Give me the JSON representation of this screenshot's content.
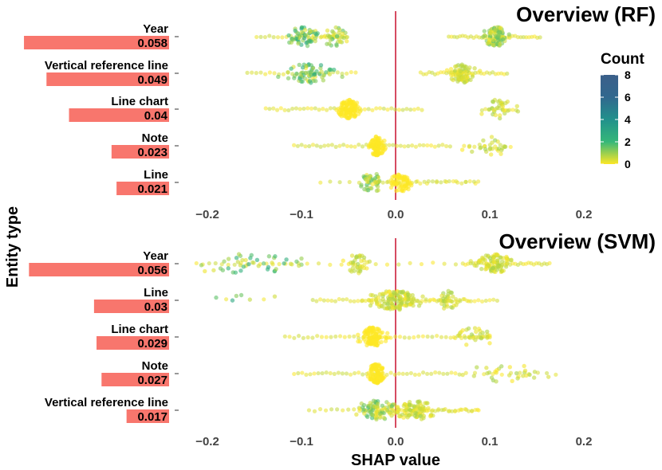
{
  "chart_data": {
    "type": "scatter",
    "subtype": "shap-beeswarm-with-importance-bars",
    "ylabel": "Entity type",
    "xlabel": "SHAP value",
    "xlim": [
      -0.22,
      0.22
    ],
    "xticks": [
      -0.2,
      -0.1,
      0.0,
      0.1,
      0.2
    ],
    "xtick_labels": [
      "−0.2",
      "−0.1",
      "0.0",
      "0.1",
      "0.2"
    ],
    "reference_line_x": 0.0,
    "reference_line_color": "#c8102e",
    "bar_color": "#f8766d",
    "legend": {
      "title": "Count",
      "min": 0,
      "max": 8,
      "ticks": [
        0,
        2,
        4,
        6,
        8
      ],
      "colors": [
        "#fde725",
        "#35b779",
        "#21918c",
        "#31688e",
        "#3b5f8a"
      ]
    },
    "panels": [
      {
        "title": "Overview (RF)",
        "features": [
          {
            "label": "Year",
            "importance": 0.058,
            "importance_label": "0.058",
            "clusters": [
              {
                "range": [
                  -0.15,
                  -0.05
                ],
                "mean": -0.097,
                "sd": 0.008,
                "n": 80,
                "max_count": 3
              },
              {
                "range": [
                  -0.08,
                  -0.05
                ],
                "mean": -0.065,
                "sd": 0.006,
                "n": 40,
                "max_count": 2
              },
              {
                "range": [
                  0.055,
                  0.155
                ],
                "mean": 0.107,
                "sd": 0.006,
                "n": 120,
                "max_count": 2
              }
            ]
          },
          {
            "label": "Vertical reference line",
            "importance": 0.049,
            "importance_label": "0.049",
            "clusters": [
              {
                "range": [
                  -0.16,
                  -0.04
                ],
                "mean": -0.09,
                "sd": 0.012,
                "n": 90,
                "max_count": 3
              },
              {
                "range": [
                  0.025,
                  0.12
                ],
                "mean": 0.07,
                "sd": 0.006,
                "n": 110,
                "max_count": 1
              }
            ]
          },
          {
            "label": "Line chart",
            "importance": 0.04,
            "importance_label": "0.04",
            "clusters": [
              {
                "range": [
                  -0.14,
                  0.03
                ],
                "mean": -0.05,
                "sd": 0.005,
                "n": 150,
                "max_count": 0
              },
              {
                "range": [
                  0.09,
                  0.13
                ],
                "mean": 0.11,
                "sd": 0.008,
                "n": 40,
                "max_count": 1
              }
            ]
          },
          {
            "label": "Note",
            "importance": 0.023,
            "importance_label": "0.023",
            "clusters": [
              {
                "range": [
                  -0.11,
                  0.06
                ],
                "mean": -0.02,
                "sd": 0.004,
                "n": 150,
                "max_count": 0
              },
              {
                "range": [
                  0.07,
                  0.125
                ],
                "mean": 0.1,
                "sd": 0.01,
                "n": 35,
                "max_count": 1
              }
            ]
          },
          {
            "label": "Line",
            "importance": 0.021,
            "importance_label": "0.021",
            "clusters": [
              {
                "range": [
                  -0.085,
                  0.09
                ],
                "mean": -0.025,
                "sd": 0.006,
                "n": 60,
                "max_count": 2
              },
              {
                "range": [
                  -0.02,
                  0.09
                ],
                "mean": 0.005,
                "sd": 0.005,
                "n": 90,
                "max_count": 0
              }
            ]
          }
        ]
      },
      {
        "title": "Overview (SVM)",
        "features": [
          {
            "label": "Year",
            "importance": 0.056,
            "importance_label": "0.056",
            "clusters": [
              {
                "range": [
                  -0.215,
                  -0.1
                ],
                "mean": -0.16,
                "sd": 0.03,
                "n": 60,
                "max_count": 3
              },
              {
                "range": [
                  -0.1,
                  0.07
                ],
                "mean": -0.04,
                "sd": 0.006,
                "n": 50,
                "max_count": 1
              },
              {
                "range": [
                  0.07,
                  0.165
                ],
                "mean": 0.105,
                "sd": 0.008,
                "n": 120,
                "max_count": 1
              }
            ]
          },
          {
            "label": "Line",
            "importance": 0.03,
            "importance_label": "0.03",
            "clusters": [
              {
                "range": [
                  -0.2,
                  -0.12
                ],
                "mean": -0.16,
                "sd": 0.02,
                "n": 8,
                "max_count": 3
              },
              {
                "range": [
                  -0.09,
                  0.11
                ],
                "mean": 0.0,
                "sd": 0.012,
                "n": 180,
                "max_count": 1
              },
              {
                "range": [
                  0.03,
                  0.08
                ],
                "mean": 0.055,
                "sd": 0.004,
                "n": 40,
                "max_count": 1
              }
            ]
          },
          {
            "label": "Line chart",
            "importance": 0.029,
            "importance_label": "0.029",
            "clusters": [
              {
                "range": [
                  -0.12,
                  0.1
                ],
                "mean": -0.025,
                "sd": 0.006,
                "n": 160,
                "max_count": 0
              },
              {
                "range": [
                  0.06,
                  0.1
                ],
                "mean": 0.085,
                "sd": 0.008,
                "n": 35,
                "max_count": 1
              }
            ]
          },
          {
            "label": "Note",
            "importance": 0.027,
            "importance_label": "0.027",
            "clusters": [
              {
                "range": [
                  -0.11,
                  0.07
                ],
                "mean": -0.02,
                "sd": 0.004,
                "n": 150,
                "max_count": 0
              },
              {
                "range": [
                  0.07,
                  0.175
                ],
                "mean": 0.11,
                "sd": 0.02,
                "n": 40,
                "max_count": 1
              }
            ]
          },
          {
            "label": "Vertical reference line",
            "importance": 0.017,
            "importance_label": "0.017",
            "clusters": [
              {
                "range": [
                  -0.095,
                  0.09
                ],
                "mean": -0.02,
                "sd": 0.01,
                "n": 110,
                "max_count": 2
              },
              {
                "range": [
                  -0.02,
                  0.09
                ],
                "mean": 0.02,
                "sd": 0.01,
                "n": 110,
                "max_count": 1
              }
            ]
          }
        ]
      }
    ]
  }
}
